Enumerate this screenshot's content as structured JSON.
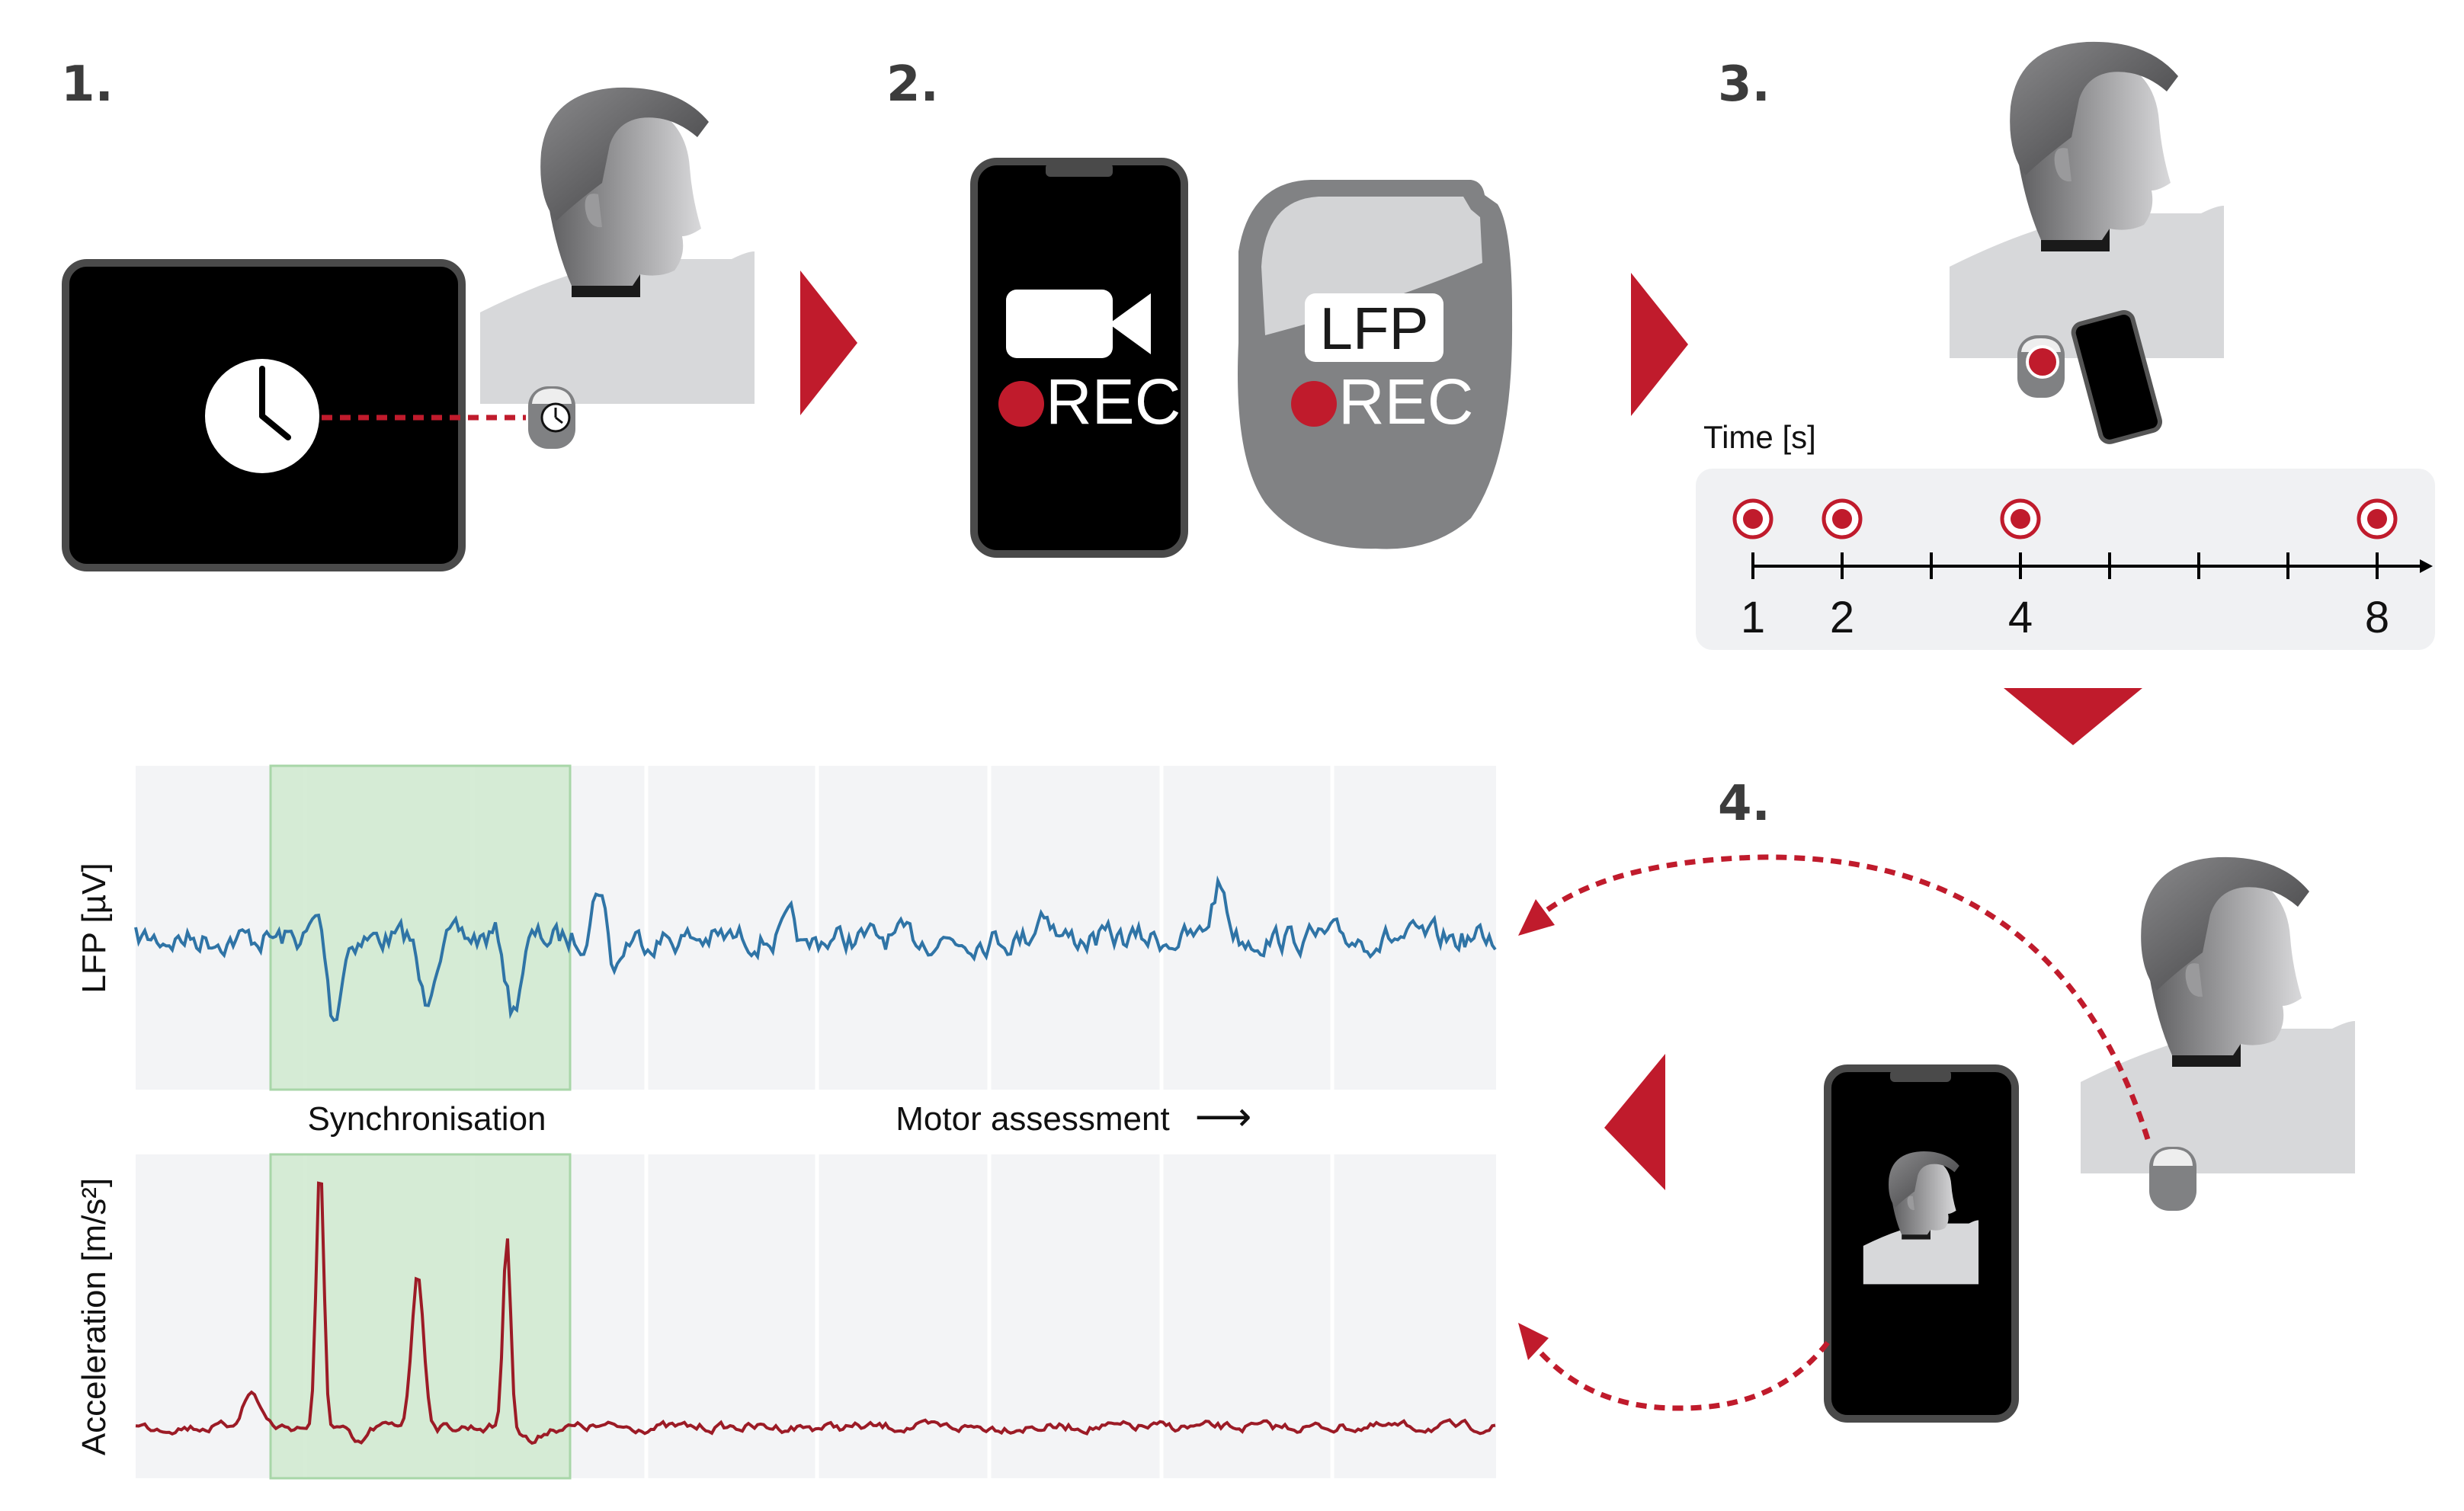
{
  "steps": {
    "s1": "1.",
    "s2": "2.",
    "s3": "3.",
    "s4": "4."
  },
  "phone_rec": {
    "rec": "REC"
  },
  "ipg_rec": {
    "lfp": "LFP",
    "rec": "REC"
  },
  "timeline": {
    "title": "Time [s]",
    "marked_seconds": [
      1,
      2,
      4,
      8
    ],
    "tick_labels": [
      "1",
      "2",
      "4",
      "8"
    ]
  },
  "plots": {
    "lfp_ylabel": "LFP [µV]",
    "acc_ylabel": "Acceleration [m/s²]",
    "sync_label": "Synchronisation",
    "motor_label": "Motor assessment",
    "motor_arrow": "⟶"
  },
  "colors": {
    "accent_red": "#c01b2c",
    "lfp_trace": "#2f74a6",
    "acc_trace": "#9c1b26",
    "sync_band": "#cfe9cf",
    "panel_bg": "#f3f4f6",
    "screen": "#000000",
    "ipg_gray": "#7d7e80"
  },
  "icons": [
    "clock-icon",
    "video-camera-icon",
    "rec-dot-icon",
    "patient-icon",
    "ipg-implant-icon",
    "smartphone-icon",
    "triangle-arrow-icon"
  ]
}
